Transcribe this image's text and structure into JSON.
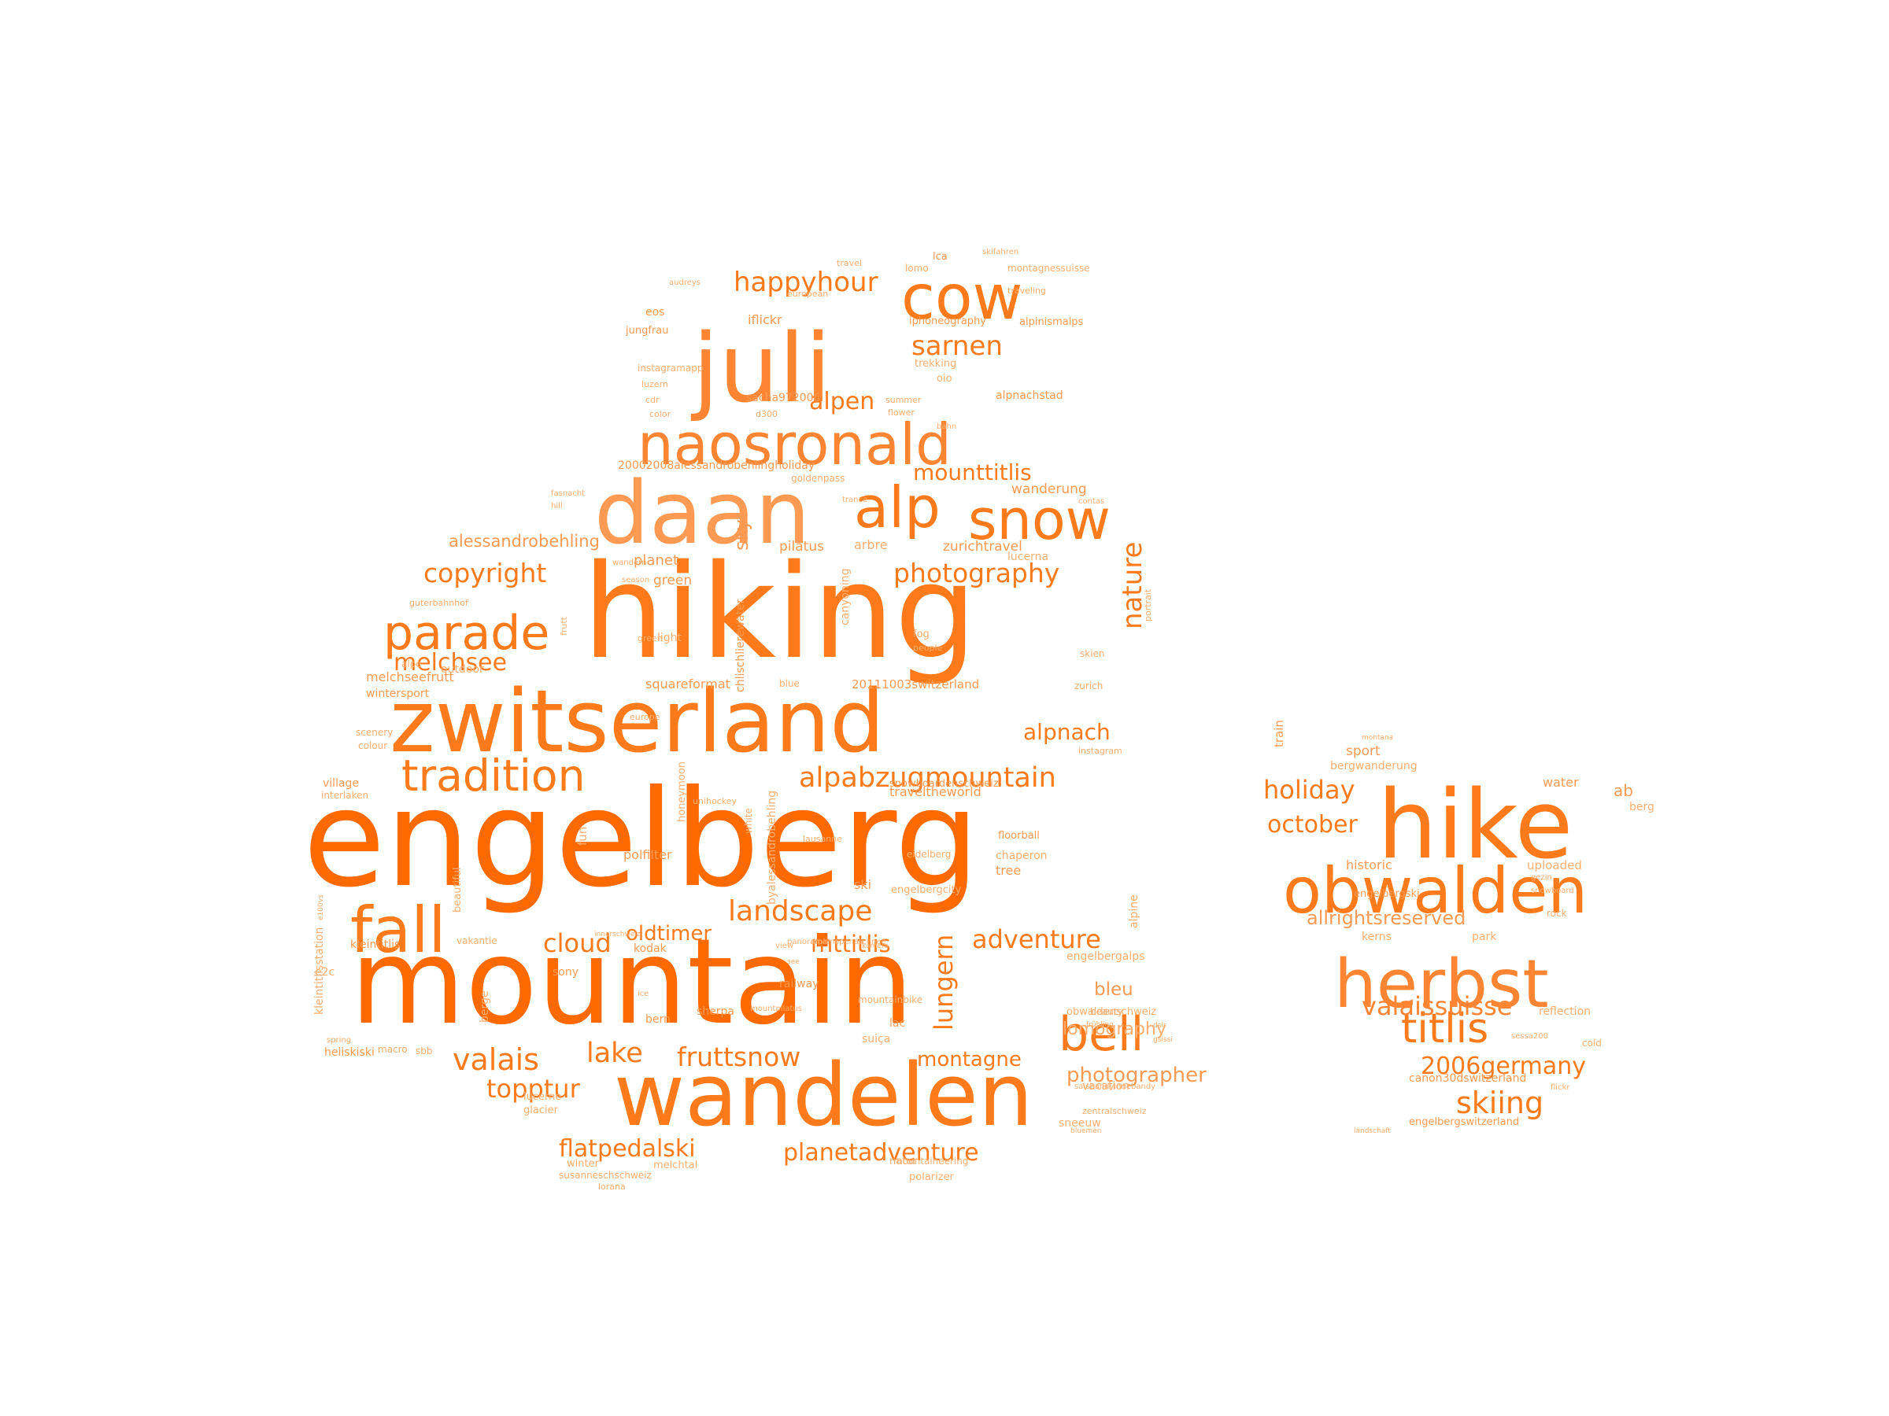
{
  "palette": {
    "background": "#ffffff",
    "word_colors": [
      "#ff6a00",
      "#ff7a1a",
      "#ff8533",
      "#ff9a52",
      "#ffae70"
    ]
  },
  "word_cloud": {
    "words": [
      {
        "text": "engelberg",
        "weight": 1.0
      },
      {
        "text": "mountain",
        "weight": 0.93
      },
      {
        "text": "hiking",
        "weight": 0.97
      },
      {
        "text": "wandelen",
        "weight": 0.68
      },
      {
        "text": "zwitserland",
        "weight": 0.6
      },
      {
        "text": "daan",
        "weight": 0.56
      },
      {
        "text": "juli",
        "weight": 0.64
      },
      {
        "text": "naosronald",
        "weight": 0.4
      },
      {
        "text": "hike",
        "weight": 0.55
      },
      {
        "text": "herbst",
        "weight": 0.43
      },
      {
        "text": "obwalden",
        "weight": 0.4
      },
      {
        "text": "cow",
        "weight": 0.4
      },
      {
        "text": "alp",
        "weight": 0.36
      },
      {
        "text": "snow",
        "weight": 0.36
      },
      {
        "text": "fall",
        "weight": 0.39
      },
      {
        "text": "bell",
        "weight": 0.3
      },
      {
        "text": "parade",
        "weight": 0.3
      },
      {
        "text": "tradition",
        "weight": 0.3
      },
      {
        "text": "copyright",
        "weight": 0.19
      },
      {
        "text": "photography",
        "weight": 0.19
      },
      {
        "text": "happyhour",
        "weight": 0.18
      },
      {
        "text": "sarnen",
        "weight": 0.18
      },
      {
        "text": "alpen",
        "weight": 0.17
      },
      {
        "text": "mounttitlis",
        "weight": 0.17
      },
      {
        "text": "melchsee",
        "weight": 0.17
      },
      {
        "text": "nature",
        "weight": 0.17
      },
      {
        "text": "alpnach",
        "weight": 0.15
      },
      {
        "text": "alpabzugmountain",
        "weight": 0.2
      },
      {
        "text": "landscape",
        "weight": 0.2
      },
      {
        "text": "valais",
        "weight": 0.2
      },
      {
        "text": "lake",
        "weight": 0.18
      },
      {
        "text": "fruttsnow",
        "weight": 0.18
      },
      {
        "text": "topptur",
        "weight": 0.18
      },
      {
        "text": "flatpedalski",
        "weight": 0.17
      },
      {
        "text": "planetadventure",
        "weight": 0.17
      },
      {
        "text": "adventure",
        "weight": 0.16
      },
      {
        "text": "cloud",
        "weight": 0.16
      },
      {
        "text": "oldtimer",
        "weight": 0.14
      },
      {
        "text": "mttitlis",
        "weight": 0.15
      },
      {
        "text": "lungern",
        "weight": 0.15
      },
      {
        "text": "montagne",
        "weight": 0.14
      },
      {
        "text": "photographer",
        "weight": 0.14
      },
      {
        "text": "bleu",
        "weight": 0.12
      },
      {
        "text": "lomography",
        "weight": 0.11
      },
      {
        "text": "titlis",
        "weight": 0.28
      },
      {
        "text": "valaissuisse",
        "weight": 0.2
      },
      {
        "text": "skiing",
        "weight": 0.2
      },
      {
        "text": "2006germany",
        "weight": 0.17
      },
      {
        "text": "holiday",
        "weight": 0.19
      },
      {
        "text": "october",
        "weight": 0.17
      },
      {
        "text": "allrightsreserved",
        "weight": 0.15
      },
      {
        "text": "ab",
        "weight": 0.12
      },
      {
        "text": "water",
        "weight": 0.1
      },
      {
        "text": "sport",
        "weight": 0.1
      },
      {
        "text": "bergwanderung",
        "weight": 0.08
      },
      {
        "text": "train",
        "weight": 0.08
      },
      {
        "text": "historic",
        "weight": 0.09
      },
      {
        "text": "uploaded",
        "weight": 0.09
      },
      {
        "text": "reflection",
        "weight": 0.08
      },
      {
        "text": "kerns",
        "weight": 0.08
      },
      {
        "text": "park",
        "weight": 0.08
      },
      {
        "text": "berg",
        "weight": 0.08
      },
      {
        "text": "canon30dswitzerland",
        "weight": 0.07
      },
      {
        "text": "engelbergswitzerland",
        "weight": 0.07
      },
      {
        "text": "engelbergski",
        "weight": 0.07
      },
      {
        "text": "rock",
        "weight": 0.06
      },
      {
        "text": "cold",
        "weight": 0.06
      },
      {
        "text": "alessandrobehling",
        "weight": 0.13
      },
      {
        "text": "planet",
        "weight": 0.1
      },
      {
        "text": "green",
        "weight": 0.1
      },
      {
        "text": "sky",
        "weight": 0.12
      },
      {
        "text": "pilatus",
        "weight": 0.1
      },
      {
        "text": "arbre",
        "weight": 0.09
      },
      {
        "text": "zurichtravel",
        "weight": 0.1
      },
      {
        "text": "lucerna",
        "weight": 0.08
      },
      {
        "text": "wanderung",
        "weight": 0.1
      },
      {
        "text": "squareformat",
        "weight": 0.09
      },
      {
        "text": "20111003switzerland",
        "weight": 0.09
      },
      {
        "text": "snowboardenschweiz",
        "weight": 0.08
      },
      {
        "text": "traveltheworld",
        "weight": 0.09
      },
      {
        "text": "melchseefrutt",
        "weight": 0.09
      },
      {
        "text": "wintersport",
        "weight": 0.08
      },
      {
        "text": "village",
        "weight": 0.08
      },
      {
        "text": "interlaken",
        "weight": 0.07
      },
      {
        "text": "polfilter",
        "weight": 0.09
      },
      {
        "text": "floorball",
        "weight": 0.08
      },
      {
        "text": "eidelberg",
        "weight": 0.07
      },
      {
        "text": "engelbergcity",
        "weight": 0.07
      },
      {
        "text": "ski",
        "weight": 0.09
      },
      {
        "text": "tree",
        "weight": 0.09
      },
      {
        "text": "chaperon",
        "weight": 0.08
      },
      {
        "text": "alpine",
        "weight": 0.08
      },
      {
        "text": "kodak",
        "weight": 0.08
      },
      {
        "text": "railway",
        "weight": 0.08
      },
      {
        "text": "engelbergalps",
        "weight": 0.08
      },
      {
        "text": "obwaldenschweiz",
        "weight": 0.07
      },
      {
        "text": "beauty",
        "weight": 0.07
      },
      {
        "text": "lac",
        "weight": 0.08
      },
      {
        "text": "sherpa",
        "weight": 0.08
      },
      {
        "text": "bern",
        "weight": 0.08
      },
      {
        "text": "sony",
        "weight": 0.08
      },
      {
        "text": "heliskiski",
        "weight": 0.08
      },
      {
        "text": "sbb",
        "weight": 0.07
      },
      {
        "text": "macro",
        "weight": 0.07
      },
      {
        "text": "berge",
        "weight": 0.07
      },
      {
        "text": "kleintitlisstation",
        "weight": 0.08
      },
      {
        "text": "kleintitlis",
        "weight": 0.08
      },
      {
        "text": "vakantie",
        "weight": 0.07
      },
      {
        "text": "beautiful",
        "weight": 0.07
      },
      {
        "text": "glacier",
        "weight": 0.07
      },
      {
        "text": "lucerne",
        "weight": 0.07
      },
      {
        "text": "winter",
        "weight": 0.07
      },
      {
        "text": "melchtal",
        "weight": 0.07
      },
      {
        "text": "susanneschschweiz",
        "weight": 0.06
      },
      {
        "text": "lorana",
        "weight": 0.06
      },
      {
        "text": "natur",
        "weight": 0.07
      },
      {
        "text": "mountaineering",
        "weight": 0.07
      },
      {
        "text": "polarizer",
        "weight": 0.07
      },
      {
        "text": "vacation",
        "weight": 0.08
      },
      {
        "text": "zentralschweiz",
        "weight": 0.06
      },
      {
        "text": "sneeuw",
        "weight": 0.07
      },
      {
        "text": "suiça",
        "weight": 0.07
      },
      {
        "text": "mountainbike",
        "weight": 0.06
      },
      {
        "text": "fun",
        "weight": 0.08
      },
      {
        "text": "outdoor",
        "weight": 0.07
      },
      {
        "text": "alpe",
        "weight": 0.06
      },
      {
        "text": "guterbahnhof",
        "weight": 0.05
      },
      {
        "text": "scenery",
        "weight": 0.06
      },
      {
        "text": "colour",
        "weight": 0.06
      },
      {
        "text": "e2c",
        "weight": 0.07
      },
      {
        "text": "light",
        "weight": 0.07
      },
      {
        "text": "blue",
        "weight": 0.07
      },
      {
        "text": "fog",
        "weight": 0.07
      },
      {
        "text": "people",
        "weight": 0.06
      },
      {
        "text": "skien",
        "weight": 0.06
      },
      {
        "text": "zurich",
        "weight": 0.06
      },
      {
        "text": "portrait",
        "weight": 0.05
      },
      {
        "text": "instagram",
        "weight": 0.06
      },
      {
        "text": "canyoning",
        "weight": 0.07
      },
      {
        "text": "chlischlierewater",
        "weight": 0.07
      },
      {
        "text": "honeymoon",
        "weight": 0.07
      },
      {
        "text": "white",
        "weight": 0.06
      },
      {
        "text": "byalessandrobehling",
        "weight": 0.07
      },
      {
        "text": "unihockey",
        "weight": 0.06
      },
      {
        "text": "lausanne",
        "weight": 0.06
      },
      {
        "text": "green",
        "weight": 0.06
      },
      {
        "text": "europe",
        "weight": 0.06
      },
      {
        "text": "frutt",
        "weight": 0.06
      },
      {
        "text": "20002008alessandrobehlingholiday",
        "weight": 0.07
      },
      {
        "text": "goldenpass",
        "weight": 0.06
      },
      {
        "text": "iflickr",
        "weight": 0.08
      },
      {
        "text": "eos",
        "weight": 0.07
      },
      {
        "text": "jungfrau",
        "weight": 0.07
      },
      {
        "text": "instagramapp",
        "weight": 0.06
      },
      {
        "text": "luzern",
        "weight": 0.07
      },
      {
        "text": "cdr",
        "weight": 0.06
      },
      {
        "text": "color",
        "weight": 0.06
      },
      {
        "text": "sacha972006",
        "weight": 0.06
      },
      {
        "text": "d300",
        "weight": 0.07
      },
      {
        "text": "flower",
        "weight": 0.06
      },
      {
        "text": "summer",
        "weight": 0.07
      },
      {
        "text": "alpnachstad",
        "weight": 0.06
      },
      {
        "text": "oio",
        "weight": 0.07
      },
      {
        "text": "trekking",
        "weight": 0.07
      },
      {
        "text": "iphoneography",
        "weight": 0.07
      },
      {
        "text": "alpinismalps",
        "weight": 0.07
      },
      {
        "text": "lca",
        "weight": 0.07
      },
      {
        "text": "lomo",
        "weight": 0.07
      },
      {
        "text": "montagnessuisse",
        "weight": 0.07
      },
      {
        "text": "travel",
        "weight": 0.07
      },
      {
        "text": "traveling",
        "weight": 0.06
      },
      {
        "text": "european",
        "weight": 0.06
      },
      {
        "text": "audreys",
        "weight": 0.06
      },
      {
        "text": "skifahren",
        "weight": 0.05
      },
      {
        "text": "fasnacht",
        "weight": 0.05
      },
      {
        "text": "hill",
        "weight": 0.06
      },
      {
        "text": "contas",
        "weight": 0.05
      },
      {
        "text": "trance",
        "weight": 0.05
      },
      {
        "text": "wandern",
        "weight": 0.05
      },
      {
        "text": "season",
        "weight": 0.05
      },
      {
        "text": "bahn",
        "weight": 0.05
      },
      {
        "text": "ice",
        "weight": 0.05
      },
      {
        "text": "mountpilatus",
        "weight": 0.05
      },
      {
        "text": "saisbandyinnebandy",
        "weight": 0.05
      },
      {
        "text": "snowboard",
        "weight": 0.05
      },
      {
        "text": "gezin",
        "weight": 0.05
      },
      {
        "text": "flickr",
        "weight": 0.05
      },
      {
        "text": "sessa200",
        "weight": 0.05
      },
      {
        "text": "montana",
        "weight": 0.05
      },
      {
        "text": "landschaft",
        "weight": 0.05
      },
      {
        "text": "dsir",
        "weight": 0.05
      },
      {
        "text": "gsissi",
        "weight": 0.05
      },
      {
        "text": "frühling",
        "weight": 0.04
      },
      {
        "text": "spring",
        "weight": 0.04
      },
      {
        "text": "view",
        "weight": 0.04
      },
      {
        "text": "see",
        "weight": 0.04
      },
      {
        "text": "kamera",
        "weight": 0.04
      },
      {
        "text": "innerschweiz",
        "weight": 0.05
      },
      {
        "text": "e100vs",
        "weight": 0.05
      },
      {
        "text": "bluemen",
        "weight": 0.04
      },
      {
        "text": "panorama",
        "weight": 0.04
      },
      {
        "text": "diplom",
        "weight": 0.04
      },
      {
        "text": "openair",
        "weight": 0.04
      },
      {
        "text": "schnee",
        "weight": 0.04
      }
    ]
  }
}
